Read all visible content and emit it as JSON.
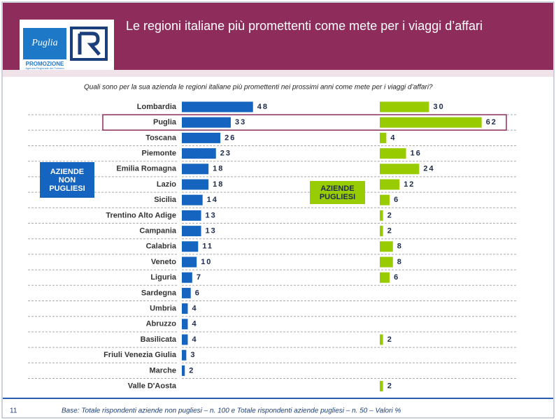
{
  "header": {
    "title": "Le regioni italiane più promettenti  come mete per i viaggi d’affari",
    "logo": "Puglia",
    "logo_sub": "PROMOZIONE",
    "logo_caption": "Agenzia Regionale del Turismo"
  },
  "chart_data": {
    "type": "bar",
    "subtitle": "Quali sono per la sua azienda le regioni italiane più promettenti nei prossimi anni come mete per i viaggi d’affari?",
    "categories": [
      "Lombardia",
      "Puglia",
      "Toscana",
      "Piemonte",
      "Emilia Romagna",
      "Lazio",
      "Sicilia",
      "Trentino Alto Adige",
      "Campania",
      "Calabria",
      "Veneto",
      "Liguria",
      "Sardegna",
      "Umbria",
      "Abruzzo",
      "Basilicata",
      "Friuli Venezia  Giulia",
      "Marche",
      "Valle D'Aosta"
    ],
    "series": [
      {
        "name": "AZIENDE NON PUGLIESI",
        "color": "#1565c0",
        "values": [
          48,
          33,
          26,
          23,
          18,
          18,
          14,
          13,
          13,
          11,
          10,
          7,
          6,
          4,
          4,
          4,
          3,
          2,
          null
        ]
      },
      {
        "name": "AZIENDE PUGLIESI",
        "color": "#99cc00",
        "values": [
          30,
          62,
          4,
          16,
          24,
          12,
          6,
          2,
          2,
          8,
          8,
          6,
          null,
          null,
          null,
          2,
          null,
          null,
          2
        ]
      }
    ],
    "highlight": "Puglia"
  },
  "footer": {
    "page": "11",
    "note": "Base:  Totale rispondenti aziende non pugliesi – n. 100 e Totale rispondenti aziende pugliesi – n. 50 – Valori %"
  }
}
